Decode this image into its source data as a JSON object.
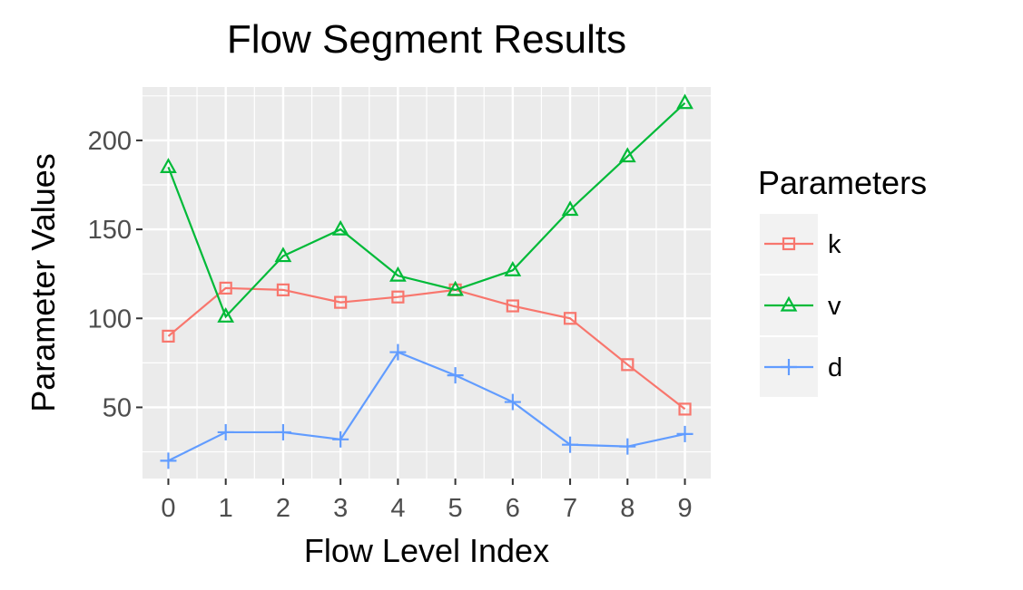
{
  "chart_data": {
    "type": "line",
    "title": "Flow Segment Results",
    "xlabel": "Flow Level Index",
    "ylabel": "Parameter Values",
    "x": [
      0,
      1,
      2,
      3,
      4,
      5,
      6,
      7,
      8,
      9
    ],
    "x_ticks": [
      "0",
      "1",
      "2",
      "3",
      "4",
      "5",
      "6",
      "7",
      "8",
      "9"
    ],
    "y_ticks": [
      50,
      100,
      150,
      200
    ],
    "xlim": [
      -0.45,
      9.45
    ],
    "ylim": [
      10,
      230
    ],
    "grid": true,
    "legend": {
      "title": "Parameters",
      "position": "right"
    },
    "series": [
      {
        "name": "k",
        "color": "#F8766D",
        "marker": "square",
        "values": [
          90,
          117,
          116,
          109,
          112,
          116,
          107,
          100,
          74,
          49
        ]
      },
      {
        "name": "v",
        "color": "#00BA38",
        "marker": "triangle",
        "values": [
          185,
          101,
          135,
          150,
          124,
          116,
          127,
          161,
          191,
          221
        ]
      },
      {
        "name": "d",
        "color": "#619CFF",
        "marker": "plus",
        "values": [
          20,
          36,
          36,
          32,
          81,
          68,
          53,
          29,
          28,
          35
        ]
      }
    ]
  }
}
